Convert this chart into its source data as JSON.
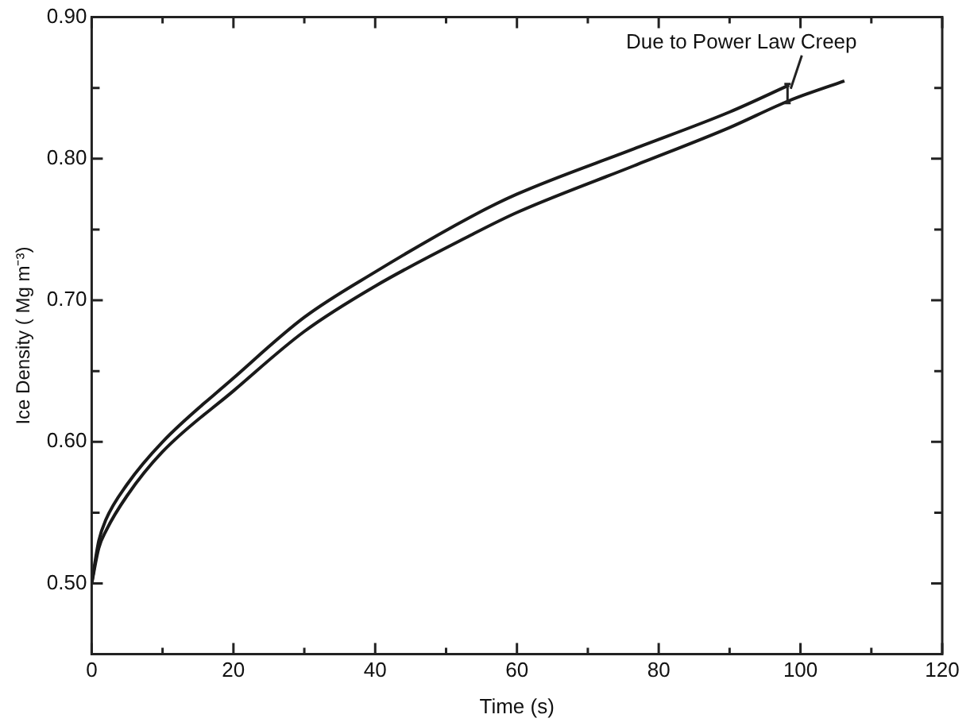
{
  "chart_data": {
    "type": "line",
    "xlabel": "Time (s)",
    "ylabel": "Ice Density ( Mg m⁻³)",
    "xlim": [
      0,
      120
    ],
    "ylim": [
      0.45,
      0.9
    ],
    "xticks": [
      0,
      {
        "value": 10,
        "label": null
      },
      20,
      {
        "value": 30,
        "label": null
      },
      40,
      {
        "value": 50,
        "label": null
      },
      60,
      {
        "value": 70,
        "label": null
      },
      80,
      {
        "value": 90,
        "label": null
      },
      100,
      {
        "value": 110,
        "label": null
      },
      120
    ],
    "yticks": [
      {
        "value": 0.5,
        "label": "0.50"
      },
      {
        "value": 0.55,
        "label": null
      },
      {
        "value": 0.6,
        "label": "0.60"
      },
      {
        "value": 0.65,
        "label": null
      },
      {
        "value": 0.7,
        "label": "0.70"
      },
      {
        "value": 0.75,
        "label": null
      },
      {
        "value": 0.8,
        "label": "0.80"
      },
      {
        "value": 0.85,
        "label": null
      },
      {
        "value": 0.9,
        "label": "0.90"
      }
    ],
    "grid": false,
    "legend": false,
    "marker": "none",
    "line_style": "solid",
    "series": [
      {
        "color": "#1a1a1a",
        "x": [
          0,
          1,
          2,
          5,
          10,
          20,
          30,
          40,
          53.5,
          60,
          76.5,
          90,
          98.4
        ],
        "values": [
          0.5,
          0.53,
          0.545,
          0.57,
          0.6,
          0.645,
          0.688,
          0.72,
          0.759,
          0.775,
          0.807,
          0.833,
          0.852
        ]
      },
      {
        "color": "#1a1a1a",
        "x": [
          0,
          1,
          2,
          5,
          10,
          20,
          30,
          40,
          53.5,
          60,
          76.5,
          90,
          98.4,
          106.2
        ],
        "values": [
          0.5,
          0.525,
          0.537,
          0.562,
          0.593,
          0.636,
          0.678,
          0.71,
          0.746,
          0.762,
          0.795,
          0.822,
          0.841,
          0.855
        ]
      }
    ],
    "annotations": [
      {
        "text": "Due to Power Law Creep",
        "x": 98.4,
        "y": 0.846
      }
    ]
  }
}
